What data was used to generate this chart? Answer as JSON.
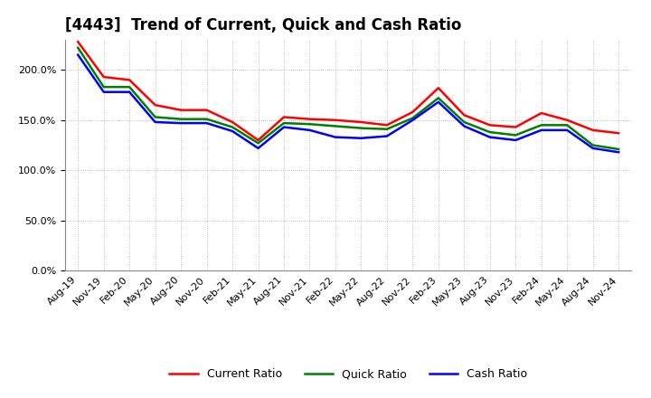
{
  "title": "[4443]  Trend of Current, Quick and Cash Ratio",
  "labels": [
    "Aug-19",
    "Nov-19",
    "Feb-20",
    "May-20",
    "Aug-20",
    "Nov-20",
    "Feb-21",
    "May-21",
    "Aug-21",
    "Nov-21",
    "Feb-22",
    "May-22",
    "Aug-22",
    "Nov-22",
    "Feb-23",
    "May-23",
    "Aug-23",
    "Nov-23",
    "Feb-24",
    "May-24",
    "Aug-24",
    "Nov-24"
  ],
  "current_ratio": [
    228,
    193,
    190,
    165,
    160,
    160,
    148,
    130,
    153,
    151,
    150,
    148,
    145,
    158,
    182,
    155,
    145,
    143,
    157,
    150,
    140,
    137
  ],
  "quick_ratio": [
    222,
    183,
    183,
    153,
    151,
    151,
    143,
    127,
    147,
    146,
    144,
    142,
    141,
    152,
    172,
    148,
    138,
    135,
    145,
    145,
    125,
    121
  ],
  "cash_ratio": [
    215,
    178,
    178,
    148,
    147,
    147,
    139,
    122,
    143,
    140,
    133,
    132,
    134,
    150,
    168,
    144,
    133,
    130,
    140,
    140,
    122,
    118
  ],
  "ylim": [
    0,
    230
  ],
  "yticks": [
    0,
    50,
    100,
    150,
    200
  ],
  "current_color": "#FF0000",
  "quick_color": "#008000",
  "cash_color": "#0000FF",
  "line_width": 1.8,
  "bg_color": "#FFFFFF",
  "plot_bg_color": "#FFFFFF",
  "grid_color": "#AAAAAA",
  "title_fontsize": 12,
  "legend_fontsize": 9,
  "tick_fontsize": 8,
  "label_rotation": 45,
  "xlabel_ha": "right"
}
